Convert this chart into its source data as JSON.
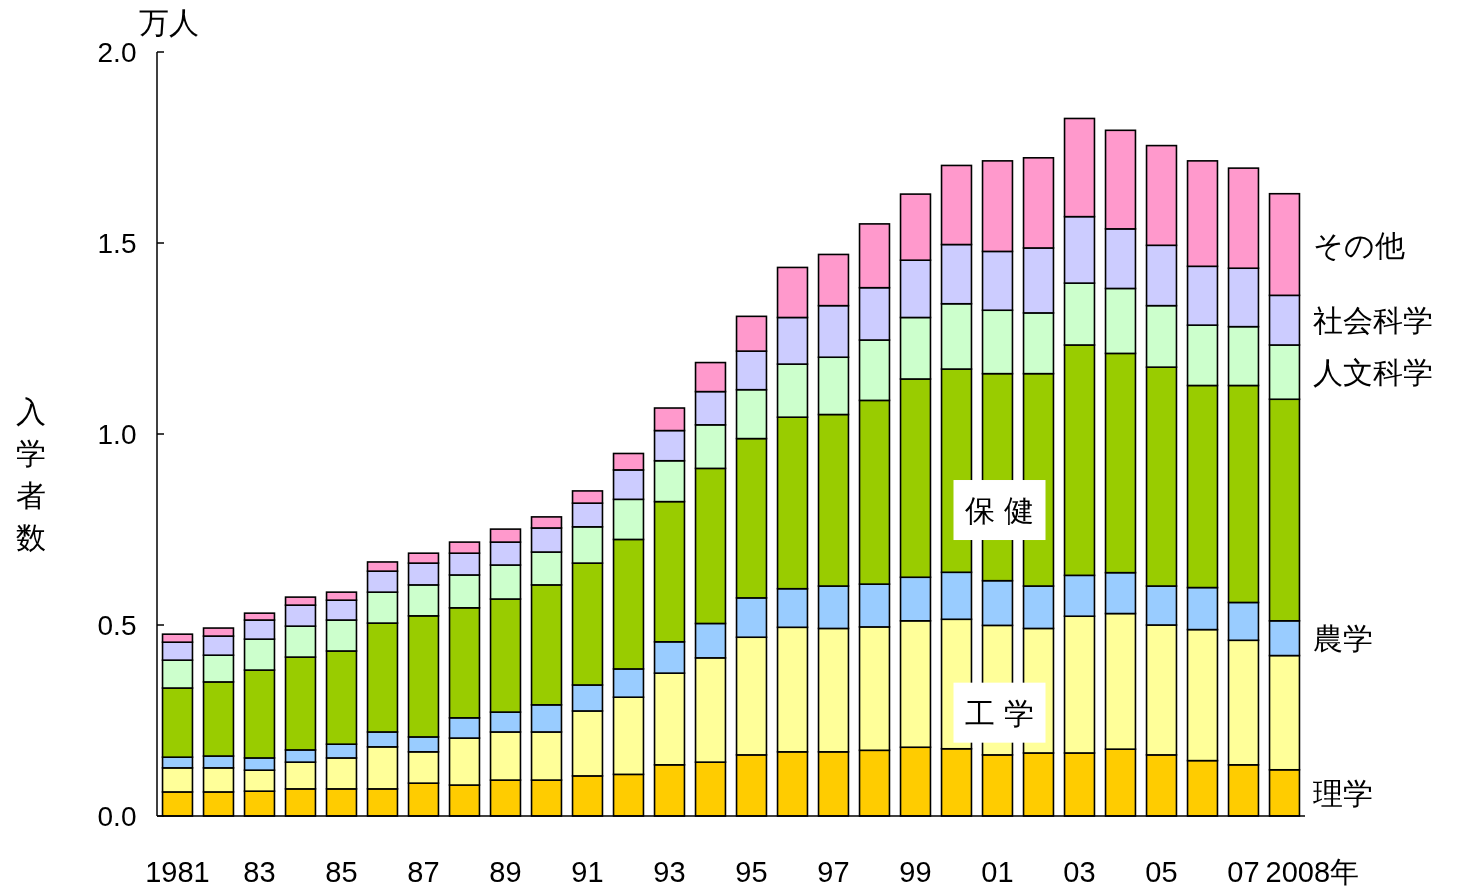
{
  "chart_data": {
    "type": "bar",
    "stacked": true,
    "ylabel": "入学者数",
    "annotations": [
      "万人"
    ],
    "categories": [
      "1981",
      null,
      "83",
      null,
      "85",
      null,
      "87",
      null,
      "89",
      null,
      "91",
      null,
      "93",
      null,
      "95",
      null,
      "97",
      null,
      "99",
      null,
      "01",
      null,
      "03",
      null,
      "05",
      null,
      "07",
      "2008年"
    ],
    "ylim": [
      0,
      2
    ],
    "yticks": [
      {
        "value": 0,
        "label": "0.0"
      },
      {
        "value": 0.5,
        "label": "0.5"
      },
      {
        "value": 1,
        "label": "1.0"
      },
      {
        "value": 1.5,
        "label": "1.5"
      },
      {
        "value": 2,
        "label": "2.0"
      }
    ],
    "grid": false,
    "series": [
      {
        "name": "理学",
        "color": "#ffcc00",
        "values": [
          0.063,
          0.063,
          0.065,
          0.071,
          0.071,
          0.071,
          0.086,
          0.081,
          0.094,
          0.094,
          0.105,
          0.109,
          0.134,
          0.141,
          0.16,
          0.168,
          0.168,
          0.172,
          0.18,
          0.176,
          0.16,
          0.165,
          0.165,
          0.175,
          0.16,
          0.145,
          0.134,
          0.121
        ]
      },
      {
        "name": "工 学",
        "color": "#ffff99",
        "values": [
          0.063,
          0.063,
          0.055,
          0.07,
          0.081,
          0.11,
          0.082,
          0.123,
          0.126,
          0.126,
          0.17,
          0.202,
          0.24,
          0.273,
          0.308,
          0.326,
          0.323,
          0.323,
          0.331,
          0.339,
          0.339,
          0.326,
          0.358,
          0.355,
          0.34,
          0.343,
          0.326,
          0.299
        ]
      },
      {
        "name": "農学",
        "color": "#99ccff",
        "values": [
          0.028,
          0.031,
          0.032,
          0.032,
          0.036,
          0.039,
          0.039,
          0.053,
          0.052,
          0.071,
          0.068,
          0.074,
          0.082,
          0.09,
          0.103,
          0.101,
          0.111,
          0.112,
          0.114,
          0.123,
          0.117,
          0.111,
          0.107,
          0.107,
          0.102,
          0.11,
          0.099,
          0.091
        ]
      },
      {
        "name": "保 健",
        "color": "#99cc00",
        "values": [
          0.181,
          0.194,
          0.23,
          0.243,
          0.244,
          0.285,
          0.317,
          0.288,
          0.296,
          0.314,
          0.319,
          0.339,
          0.367,
          0.406,
          0.417,
          0.449,
          0.449,
          0.481,
          0.519,
          0.532,
          0.542,
          0.556,
          0.603,
          0.574,
          0.573,
          0.529,
          0.568,
          0.58
        ]
      },
      {
        "name": "人文科学",
        "color": "#ccffcc",
        "values": [
          0.073,
          0.07,
          0.081,
          0.081,
          0.081,
          0.081,
          0.081,
          0.086,
          0.089,
          0.086,
          0.095,
          0.105,
          0.107,
          0.114,
          0.128,
          0.139,
          0.15,
          0.158,
          0.161,
          0.171,
          0.166,
          0.159,
          0.162,
          0.17,
          0.161,
          0.158,
          0.154,
          0.142
        ]
      },
      {
        "name": "社会科学",
        "color": "#ccccff",
        "values": [
          0.047,
          0.05,
          0.05,
          0.055,
          0.052,
          0.055,
          0.057,
          0.057,
          0.06,
          0.063,
          0.062,
          0.077,
          0.079,
          0.087,
          0.101,
          0.122,
          0.135,
          0.137,
          0.15,
          0.155,
          0.154,
          0.17,
          0.174,
          0.156,
          0.158,
          0.154,
          0.153,
          0.13
        ]
      },
      {
        "name": "その他",
        "color": "#ff99cc",
        "values": [
          0.021,
          0.021,
          0.018,
          0.021,
          0.021,
          0.024,
          0.026,
          0.029,
          0.034,
          0.029,
          0.032,
          0.043,
          0.059,
          0.076,
          0.091,
          0.131,
          0.134,
          0.167,
          0.173,
          0.207,
          0.237,
          0.236,
          0.257,
          0.258,
          0.261,
          0.276,
          0.262,
          0.266
        ]
      }
    ]
  }
}
